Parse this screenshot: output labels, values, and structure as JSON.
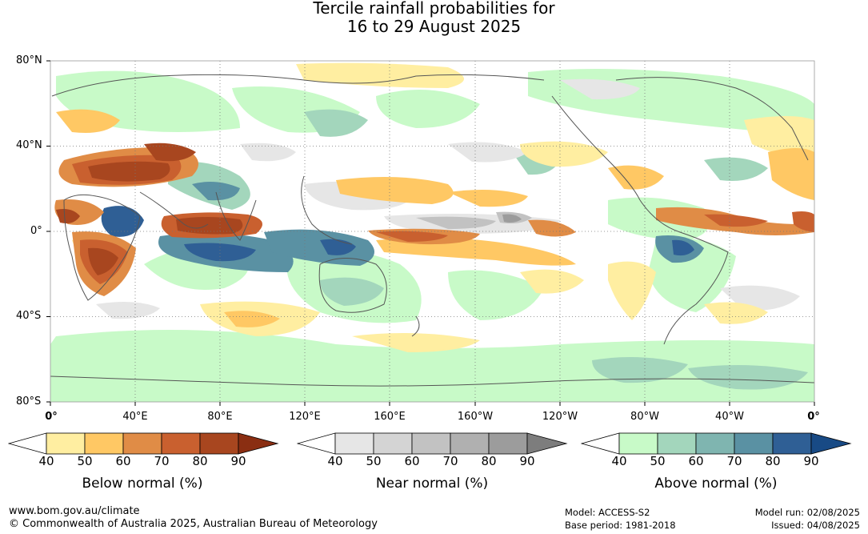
{
  "title": {
    "line1": "Tercile rainfall probabilities for",
    "line2": "16 to 29 August 2025"
  },
  "map": {
    "lat_labels": [
      "80°N",
      "40°N",
      "0°",
      "40°S",
      "80°S"
    ],
    "lon_labels": [
      "0°",
      "40°E",
      "80°E",
      "120°E",
      "160°E",
      "160°W",
      "120°W",
      "80°W",
      "40°W",
      "0°"
    ],
    "grid": "dotted",
    "projection": "equirectangular",
    "extent": {
      "lon": [
        0,
        360
      ],
      "lat": [
        -80,
        80
      ]
    }
  },
  "colorbars": [
    {
      "name": "below",
      "label": "Below normal (%)",
      "ticks": [
        "40",
        "50",
        "60",
        "70",
        "80",
        "90"
      ],
      "colors": [
        "#ffffff",
        "#ffeea1",
        "#ffc864",
        "#e08c46",
        "#c9602f",
        "#a8461f",
        "#8a2e12"
      ]
    },
    {
      "name": "near",
      "label": "Near normal (%)",
      "ticks": [
        "40",
        "50",
        "60",
        "70",
        "80",
        "90"
      ],
      "colors": [
        "#ffffff",
        "#e6e6e6",
        "#d4d4d4",
        "#c2c2c2",
        "#b0b0b0",
        "#9c9c9c",
        "#7d7d7d"
      ]
    },
    {
      "name": "above",
      "label": "Above normal (%)",
      "ticks": [
        "40",
        "50",
        "60",
        "70",
        "80",
        "90"
      ],
      "colors": [
        "#ffffff",
        "#c8fac8",
        "#a3d6bc",
        "#7fb5b0",
        "#5a91a3",
        "#2f5f95",
        "#184a85"
      ]
    }
  ],
  "footer": {
    "website": "www.bom.gov.au/climate",
    "copyright": "© Commonwealth of Australia 2025, Australian Bureau of Meteorology",
    "model": "Model: ACCESS-S2",
    "base_period": "Base period: 1981-2018",
    "model_run": "Model run: 02/08/2025",
    "issued": "Issued: 04/08/2025"
  }
}
